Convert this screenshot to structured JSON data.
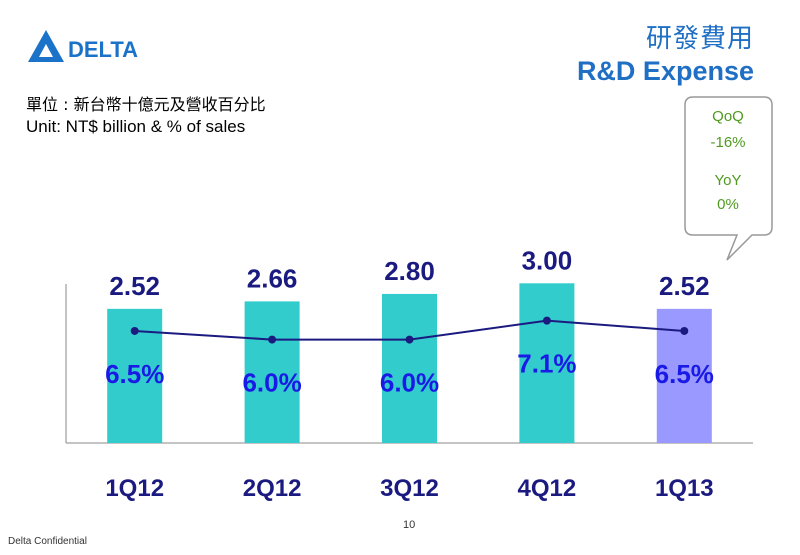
{
  "slide": {
    "title_cn": "研發費用",
    "title_en": "R&D Expense",
    "unit_cn": "單位 : 新台幣十億元及營收百分比",
    "unit_en": "Unit: NT$ billion & % of sales",
    "footer": "Delta Confidential",
    "page_number": "10"
  },
  "logo": {
    "text": "DELTA",
    "color": "#1a73c8"
  },
  "callout": {
    "qoq_label": "QoQ",
    "qoq_value": "-16%",
    "yoy_label": "YoY",
    "yoy_value": "0%",
    "text_color": "#4f9a1f"
  },
  "chart_data": {
    "type": "bar",
    "categories": [
      "1Q12",
      "2Q12",
      "3Q12",
      "4Q12",
      "1Q13"
    ],
    "series": [
      {
        "values": [
          2.52,
          2.66,
          2.8,
          3.0,
          2.52
        ],
        "labels": [
          "2.52",
          "2.66",
          "2.80",
          "3.00",
          "2.52"
        ],
        "colors": [
          "#33cccc",
          "#33cccc",
          "#33cccc",
          "#33cccc",
          "#9999ff"
        ]
      },
      {
        "type": "line",
        "values": [
          6.5,
          6.0,
          6.0,
          7.1,
          6.5
        ],
        "labels": [
          "6.5%",
          "6.0%",
          "6.0%",
          "7.1%",
          "6.5%"
        ],
        "color": "#1a1a80"
      }
    ],
    "ylim": [
      0,
      3.4
    ],
    "line_ylim": [
      0,
      10.5
    ],
    "label_color": "#1a1a80",
    "category_label_color": "#1a1a80"
  }
}
